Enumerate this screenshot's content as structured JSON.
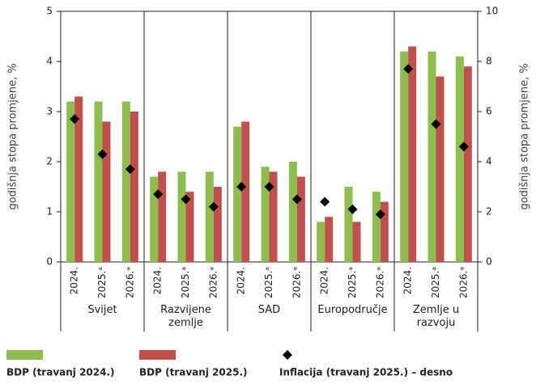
{
  "chart_data": {
    "type": "bar",
    "categories": [
      "2024.",
      "2025.ᵃ",
      "2026.ᵃ",
      "2024.",
      "2025.ᵃ",
      "2026.ᵃ",
      "2024.",
      "2025.ᵃ",
      "2026.ᵃ",
      "2024.",
      "2025.ᵃ",
      "2026.ᵃ",
      "2024.",
      "2025.ᵃ",
      "2026.ᵃ"
    ],
    "groups": [
      "Svijet",
      "Razvijene zemlje",
      "SAD",
      "Europodručje",
      "Zemlje u razvoju"
    ],
    "series": [
      {
        "name": "BDP (travanj 2024.)",
        "color": "#8fbc4f",
        "values": [
          3.2,
          3.2,
          3.2,
          1.7,
          1.8,
          1.8,
          2.7,
          1.9,
          2.0,
          0.8,
          1.5,
          1.4,
          4.2,
          4.2,
          4.1
        ]
      },
      {
        "name": "BDP (travanj 2025.)",
        "color": "#c0504d",
        "values": [
          3.3,
          2.8,
          3.0,
          1.8,
          1.4,
          1.5,
          2.8,
          1.8,
          1.7,
          0.9,
          0.8,
          1.2,
          4.3,
          3.7,
          3.9
        ]
      },
      {
        "name": "Inflacija (travanj 2025.) – desno",
        "color": "#000000",
        "axis": "y2",
        "type": "scatter",
        "values": [
          5.7,
          4.3,
          3.7,
          2.7,
          2.5,
          2.2,
          3.0,
          3.0,
          2.5,
          2.4,
          2.1,
          1.9,
          7.7,
          5.5,
          4.6
        ]
      }
    ],
    "ylabel": "godišnja stopa promjene, %",
    "y2label": "godišnja stopa promjene, %",
    "ylim": [
      0,
      5
    ],
    "yticks": [
      0,
      1,
      2,
      3,
      4,
      5
    ],
    "y2lim": [
      0,
      10
    ],
    "y2ticks": [
      0,
      2,
      4,
      6,
      8,
      10
    ],
    "legend": "bottom"
  }
}
